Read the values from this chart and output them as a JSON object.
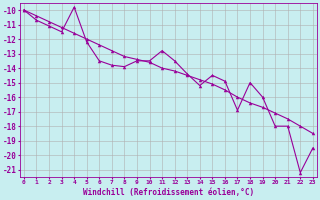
{
  "x_data": [
    0,
    1,
    2,
    3,
    4,
    5,
    6,
    7,
    8,
    9,
    10,
    11,
    12,
    13,
    14,
    15,
    16,
    17,
    18,
    19,
    20,
    21,
    22,
    23
  ],
  "y_line1": [
    -10.0,
    -10.7,
    -11.1,
    -11.5,
    -9.8,
    -12.2,
    -13.5,
    -13.8,
    -13.9,
    -13.5,
    -13.5,
    -12.8,
    -13.5,
    -14.4,
    -15.2,
    -14.5,
    -14.9,
    -16.9,
    -15.0,
    -16.0,
    -18.0,
    -18.0,
    -21.2,
    -19.5
  ],
  "y_line2": [
    -10.0,
    -10.4,
    -10.8,
    -11.2,
    -11.6,
    -12.0,
    -12.4,
    -12.8,
    -13.2,
    -13.4,
    -13.6,
    -14.0,
    -14.2,
    -14.5,
    -14.8,
    -15.1,
    -15.5,
    -16.0,
    -16.4,
    -16.7,
    -17.1,
    -17.5,
    -18.0,
    -18.5
  ],
  "line_color": "#990099",
  "bg_color": "#c8eef0",
  "grid_color": "#b0b0b0",
  "xlabel": "Windchill (Refroidissement éolien,°C)",
  "xlabel_color": "#990099",
  "ylabel_ticks": [
    -10,
    -11,
    -12,
    -13,
    -14,
    -15,
    -16,
    -17,
    -18,
    -19,
    -20,
    -21
  ],
  "xlim": [
    -0.3,
    23.3
  ],
  "ylim": [
    -21.5,
    -9.5
  ],
  "xtick_labels": [
    "0",
    "1",
    "2",
    "3",
    "4",
    "5",
    "6",
    "7",
    "8",
    "9",
    "10",
    "11",
    "12",
    "13",
    "14",
    "15",
    "16",
    "17",
    "18",
    "19",
    "20",
    "21",
    "22",
    "23"
  ],
  "marker": "^",
  "markersize": 2.5,
  "linewidth": 0.8
}
